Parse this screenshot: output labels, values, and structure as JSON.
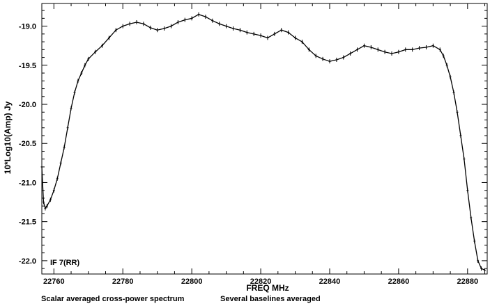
{
  "chart_data": {
    "type": "line",
    "title": "",
    "xlabel": "FREQ  MHz",
    "ylabel": "10*Log10(Amp) Jy",
    "xlim": [
      22756.5,
      22885.7
    ],
    "ylim": [
      -22.17,
      -18.71
    ],
    "x_ticks": [
      22760,
      22780,
      22800,
      22820,
      22840,
      22860,
      22880
    ],
    "x_tick_labels": [
      "22760",
      "22780",
      "22800",
      "22820",
      "22840",
      "22860",
      "22880"
    ],
    "y_ticks": [
      -19.0,
      -19.5,
      -20.0,
      -20.5,
      -21.0,
      -21.5,
      -22.0
    ],
    "y_tick_labels": [
      "-19.0",
      "-19.5",
      "-20.0",
      "-20.5",
      "-21.0",
      "-21.5",
      "-22.0"
    ],
    "grid": false,
    "annotation": "IF 7(RR)",
    "footer_left": "Scalar averaged cross-power spectrum",
    "footer_right": "Several baselines averaged",
    "series": [
      {
        "x": [
          22756.5,
          22757.0,
          22757.5,
          22758.0,
          22759.0,
          22760.0,
          22761.0,
          22762.0,
          22763.0,
          22764.0,
          22765.0,
          22766.0,
          22767.0,
          22768.0,
          22769.0,
          22770.0,
          22772.0,
          22774.0,
          22776.0,
          22778.0,
          22780.0,
          22782.0,
          22784.0,
          22786.0,
          22788.0,
          22790.0,
          22792.0,
          22794.0,
          22796.0,
          22798.0,
          22800.0,
          22802.0,
          22804.0,
          22806.0,
          22808.0,
          22810.0,
          22812.0,
          22814.0,
          22816.0,
          22818.0,
          22820.0,
          22822.0,
          22824.0,
          22826.0,
          22828.0,
          22830.0,
          22832.0,
          22834.0,
          22836.0,
          22838.0,
          22840.0,
          22842.0,
          22844.0,
          22846.0,
          22848.0,
          22850.0,
          22852.0,
          22854.0,
          22856.0,
          22858.0,
          22860.0,
          22862.0,
          22864.0,
          22866.0,
          22868.0,
          22870.0,
          22872.0,
          22873.0,
          22874.0,
          22875.0,
          22876.0,
          22877.0,
          22878.0,
          22879.0,
          22880.0,
          22881.0,
          22882.0,
          22883.0,
          22884.0,
          22885.0
        ],
        "y": [
          -20.8,
          -21.25,
          -21.33,
          -21.3,
          -21.22,
          -21.1,
          -20.95,
          -20.75,
          -20.55,
          -20.3,
          -20.05,
          -19.85,
          -19.7,
          -19.6,
          -19.5,
          -19.42,
          -19.33,
          -19.25,
          -19.15,
          -19.05,
          -19.0,
          -18.97,
          -18.95,
          -18.97,
          -19.02,
          -19.05,
          -19.03,
          -19.0,
          -18.95,
          -18.92,
          -18.9,
          -18.85,
          -18.88,
          -18.93,
          -18.97,
          -19.0,
          -19.03,
          -19.05,
          -19.08,
          -19.1,
          -19.12,
          -19.15,
          -19.1,
          -19.05,
          -19.08,
          -19.15,
          -19.2,
          -19.3,
          -19.38,
          -19.42,
          -19.45,
          -19.43,
          -19.4,
          -19.35,
          -19.3,
          -19.25,
          -19.27,
          -19.3,
          -19.33,
          -19.35,
          -19.33,
          -19.3,
          -19.3,
          -19.28,
          -19.27,
          -19.25,
          -19.3,
          -19.38,
          -19.5,
          -19.65,
          -19.85,
          -20.1,
          -20.4,
          -20.7,
          -21.1,
          -21.45,
          -21.75,
          -22.0,
          -22.1,
          -22.12
        ]
      }
    ]
  }
}
